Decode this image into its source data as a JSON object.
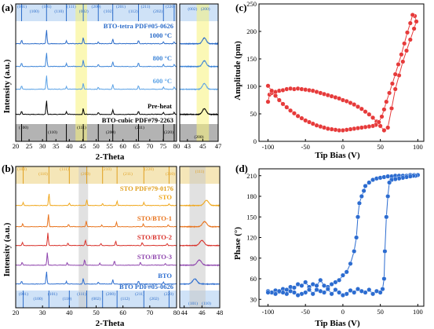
{
  "panels": {
    "a": {
      "label": "(a)",
      "xlabel": "2-Theta",
      "ylabel": "Intensity (a.u.)",
      "ticks_main": [
        "20",
        "25",
        "30",
        "35",
        "40",
        "45",
        "50",
        "55",
        "60",
        "65",
        "70",
        "75",
        "80"
      ],
      "ticks_zoom": [
        "43",
        "45",
        "47"
      ],
      "ref_top": "BTO-tetra PDF#05-0626",
      "ref_bottom": "BTO-cubic PDF#79-2263",
      "curves": [
        {
          "name": "1000 °C",
          "color": "#2c6cc9"
        },
        {
          "name": "800 °C",
          "color": "#3f86d8"
        },
        {
          "name": "600 °C",
          "color": "#5ba2e6"
        },
        {
          "name": "Pre-heat",
          "color": "#000000"
        }
      ],
      "top_hkl": [
        "(001)",
        "(100)",
        "(101)",
        "(110)",
        "(111)",
        "(002)",
        "(200)",
        "(102)",
        "(201)",
        "(112)",
        "(211)",
        "(202)",
        "(220)"
      ],
      "bottom_hkl": [
        "(100)",
        "(110)",
        "(111)",
        "(200)",
        "(211)",
        "(220)"
      ],
      "zoom_top_hkl": [
        "(002)",
        "(200)"
      ],
      "zoom_bottom_hkl": [
        "(200)"
      ]
    },
    "b": {
      "label": "(b)",
      "xlabel": "2-Theta",
      "ylabel": "Intensity (a.u.)",
      "ticks_main": [
        "20",
        "30",
        "40",
        "50",
        "60",
        "70",
        "80"
      ],
      "ticks_zoom": [
        "44",
        "46",
        "48"
      ],
      "ref_top": "STO PDF#79-0176",
      "ref_bottom": "BTO PDF#05-0626",
      "curves": [
        {
          "name": "STO",
          "color": "#f0a81e"
        },
        {
          "name": "STO/BTO-1",
          "color": "#e8741e"
        },
        {
          "name": "STO/BTO-2",
          "color": "#d9322b"
        },
        {
          "name": "STO/BTO-3",
          "color": "#8e44ad"
        },
        {
          "name": "BTO",
          "color": "#2f6fd0"
        }
      ],
      "top_hkl": [
        "(100)",
        "(110)",
        "(111)",
        "(200)",
        "(210)",
        "(211)",
        "(220)",
        "(310)"
      ],
      "bottom_hkl": [
        "(001)",
        "(100)",
        "(101)",
        "(110)",
        "(111)",
        "(002)",
        "(200)",
        "(112)",
        "(211)",
        "(202)",
        "(220)"
      ],
      "zoom_top_hkl": [
        "(111)"
      ],
      "zoom_bottom_hkl": [
        "(101)",
        "(110)"
      ]
    },
    "c": {
      "label": "(c)",
      "xlabel": "Tip Bias (V)",
      "ylabel": "Amplitude (pm)"
    },
    "d": {
      "label": "(d)",
      "xlabel": "Tip Bias (V)",
      "ylabel": "Phase (°)"
    }
  },
  "chart_data": [
    {
      "type": "line",
      "title": "",
      "xlabel": "2-Theta",
      "ylabel": "Intensity (a.u.)",
      "xlim": [
        20,
        80
      ],
      "zoom_xlim": [
        42,
        47
      ],
      "series": [
        {
          "name": "1000 °C",
          "peaks_2theta": [
            22.2,
            31.5,
            38.9,
            45.2,
            50.8,
            56.2,
            65.8,
            75.1,
            79.1
          ]
        },
        {
          "name": "800 °C",
          "peaks_2theta": [
            22.2,
            31.5,
            38.9,
            45.2,
            50.8,
            56.2,
            65.8,
            75.1,
            79.1
          ]
        },
        {
          "name": "600 °C",
          "peaks_2theta": [
            22.2,
            31.5,
            38.9,
            45.2,
            50.8,
            56.2,
            65.8,
            75.1,
            79.1
          ]
        },
        {
          "name": "Pre-heat",
          "peaks_2theta": [
            22.2,
            31.5,
            38.9,
            45.2,
            50.8,
            56.2,
            65.8,
            75.1,
            79.1
          ]
        }
      ]
    },
    {
      "type": "line",
      "title": "",
      "xlabel": "2-Theta",
      "ylabel": "Intensity (a.u.)",
      "xlim": [
        20,
        80
      ],
      "zoom_xlim": [
        43.5,
        48
      ],
      "series": [
        {
          "name": "STO",
          "peaks_2theta": [
            22.8,
            32.4,
            40.0,
            46.5,
            52.4,
            57.8,
            67.8,
            77.2
          ]
        },
        {
          "name": "STO/BTO-1",
          "peaks_2theta": [
            22.6,
            32.2,
            39.7,
            46.3,
            52.1,
            57.6,
            67.6,
            76.9
          ]
        },
        {
          "name": "STO/BTO-2",
          "peaks_2theta": [
            22.5,
            32.0,
            39.5,
            46.0,
            51.8,
            57.3,
            67.2,
            76.5
          ]
        },
        {
          "name": "STO/BTO-3",
          "peaks_2theta": [
            22.4,
            31.8,
            39.2,
            45.7,
            51.4,
            56.8,
            66.5,
            75.8
          ]
        },
        {
          "name": "BTO",
          "peaks_2theta": [
            22.2,
            31.5,
            38.9,
            45.2,
            50.8,
            56.2,
            65.8,
            75.1
          ]
        }
      ]
    },
    {
      "type": "line",
      "title": "",
      "xlabel": "Tip Bias (V)",
      "ylabel": "Amplitude (pm)",
      "xlim": [
        -112,
        108
      ],
      "ylim": [
        0,
        250
      ],
      "xticks": [
        -100,
        -50,
        0,
        50,
        100
      ],
      "yticks": [
        0,
        50,
        100,
        150,
        200,
        250
      ],
      "color": "#e63a3a",
      "series": [
        {
          "name": "",
          "x": [
            -100,
            -98,
            -95,
            -90,
            -85,
            -80,
            -75,
            -70,
            -65,
            -60,
            -55,
            -50,
            -45,
            -40,
            -35,
            -30,
            -25,
            -20,
            -15,
            -10,
            -5,
            0,
            5,
            10,
            15,
            20,
            25,
            30,
            35,
            40,
            45,
            50,
            55,
            60,
            65,
            70,
            75,
            80,
            85,
            90,
            95,
            98,
            96,
            93,
            90,
            86,
            82,
            78,
            74,
            70,
            66,
            62,
            58,
            55,
            52,
            48,
            44,
            40,
            35,
            30,
            25,
            20,
            15,
            10,
            5,
            0,
            -5,
            -10,
            -15,
            -20,
            -25,
            -30,
            -35,
            -40,
            -45,
            -50,
            -55,
            -60,
            -65,
            -70,
            -75,
            -80,
            -85,
            -90,
            -95,
            -100
          ],
          "y": [
            72,
            85,
            88,
            90,
            92,
            93,
            95,
            96,
            95,
            96,
            95,
            94,
            93,
            92,
            90,
            88,
            86,
            84,
            82,
            80,
            78,
            75,
            73,
            70,
            67,
            63,
            59,
            54,
            49,
            43,
            36,
            28,
            20,
            25,
            60,
            95,
            120,
            145,
            165,
            185,
            205,
            218,
            228,
            230,
            215,
            198,
            178,
            158,
            140,
            122,
            105,
            88,
            72,
            58,
            45,
            35,
            30,
            28,
            27,
            26,
            25,
            24,
            23,
            22,
            21,
            20,
            20,
            21,
            22,
            23,
            25,
            27,
            29,
            32,
            35,
            38,
            42,
            46,
            51,
            56,
            62,
            68,
            75,
            83,
            92,
            101
          ]
        }
      ]
    },
    {
      "type": "line",
      "title": "",
      "xlabel": "Tip Bias (V)",
      "ylabel": "Phase (°)",
      "xlim": [
        -112,
        108
      ],
      "ylim": [
        20,
        220
      ],
      "xticks": [
        -100,
        -50,
        0,
        50,
        100
      ],
      "yticks": [
        30,
        60,
        90,
        120,
        150,
        180,
        210
      ],
      "color": "#2c6cd0",
      "series": [
        {
          "name": "",
          "x": [
            -100,
            -95,
            -90,
            -85,
            -80,
            -75,
            -70,
            -65,
            -60,
            -55,
            -50,
            -45,
            -40,
            -35,
            -30,
            -25,
            -20,
            -15,
            -10,
            -5,
            0,
            5,
            10,
            15,
            18,
            20,
            22,
            25,
            28,
            30,
            35,
            40,
            45,
            50,
            55,
            60,
            65,
            70,
            75,
            80,
            85,
            90,
            95,
            100,
            97,
            94,
            90,
            85,
            80,
            75,
            70,
            65,
            62,
            60,
            58,
            56,
            55,
            53,
            50,
            45,
            40,
            35,
            30,
            25,
            20,
            15,
            10,
            5,
            0,
            -5,
            -10,
            -15,
            -20,
            -25,
            -30,
            -35,
            -40,
            -45,
            -50,
            -55,
            -60,
            -65,
            -70,
            -75,
            -80,
            -85,
            -90,
            -95,
            -100
          ],
          "y": [
            42,
            40,
            43,
            41,
            45,
            44,
            48,
            47,
            52,
            50,
            55,
            48,
            52,
            50,
            58,
            50,
            48,
            52,
            55,
            58,
            65,
            70,
            82,
            100,
            120,
            150,
            170,
            180,
            188,
            195,
            200,
            204,
            206,
            207,
            208,
            209,
            209,
            210,
            210,
            210,
            210,
            211,
            211,
            211,
            210,
            210,
            209,
            208,
            207,
            206,
            205,
            204,
            200,
            180,
            150,
            100,
            60,
            45,
            40,
            42,
            38,
            44,
            40,
            42,
            45,
            40,
            43,
            38,
            36,
            40,
            44,
            38,
            45,
            40,
            42,
            44,
            38,
            44,
            40,
            38,
            36,
            40,
            42,
            38,
            40,
            42,
            38,
            40,
            40
          ]
        }
      ]
    }
  ]
}
